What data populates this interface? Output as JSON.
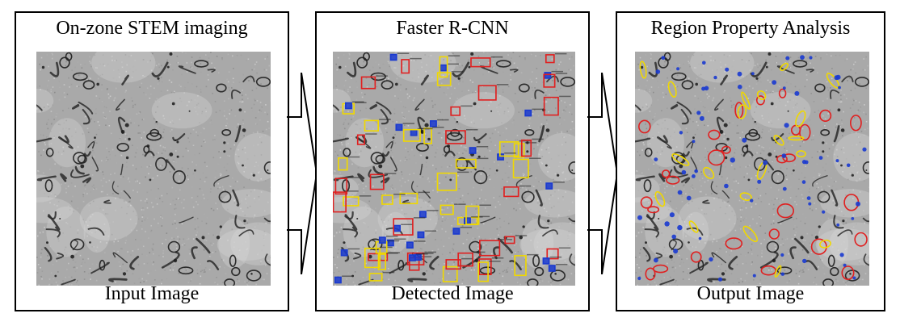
{
  "panels": [
    {
      "title": "On-zone STEM imaging",
      "caption": "Input Image"
    },
    {
      "title": "Faster R-CNN",
      "caption": "Detected Image"
    },
    {
      "title": "Region Property Analysis",
      "caption": "Output Image"
    }
  ],
  "colors": {
    "background": "#ffffff",
    "border": "#000000",
    "micrograph_base": "#a9a9a9",
    "box_red": "#e02020",
    "box_yellow": "#f0d800",
    "box_blue": "#1a3ad0"
  }
}
